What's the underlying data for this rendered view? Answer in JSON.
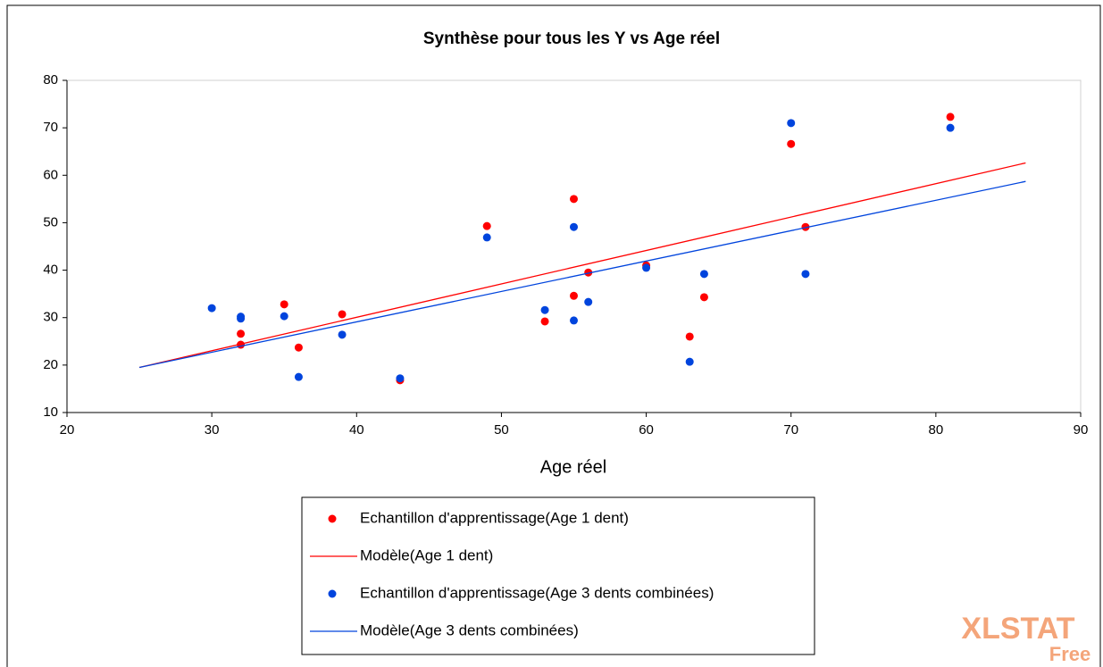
{
  "chart_data": {
    "type": "scatter",
    "title": "Synthèse pour tous les Y vs Age réel",
    "xlabel": "Age réel",
    "xlim": [
      20,
      90
    ],
    "xticks": [
      20,
      30,
      40,
      50,
      60,
      70,
      80,
      90
    ],
    "ylim": [
      10,
      80
    ],
    "yticks": [
      10,
      20,
      30,
      40,
      50,
      60,
      70,
      80
    ],
    "series": [
      {
        "name": "Echantillon d'apprentissage(Age 1 dent)",
        "kind": "points",
        "color": "#ff0000",
        "x": [
          32,
          32,
          35,
          36,
          39,
          43,
          49,
          53,
          55,
          55,
          56,
          60,
          63,
          64,
          70,
          71,
          81
        ],
        "values": [
          24.3,
          26.6,
          32.8,
          23.7,
          30.7,
          16.8,
          49.3,
          29.2,
          55.0,
          34.6,
          39.5,
          41,
          26,
          34.3,
          66.6,
          49.1,
          72.3
        ]
      },
      {
        "name": "Modèle(Age 1 dent)",
        "kind": "line",
        "color": "#ff0000",
        "x": [
          25,
          86.2
        ],
        "values": [
          19.5,
          62.6
        ]
      },
      {
        "name": "Echantillon d'apprentissage(Age 3 dents combinées)",
        "kind": "points",
        "color": "#0044dd",
        "x": [
          30,
          32,
          32,
          35,
          36,
          39,
          43,
          49,
          53,
          55,
          55,
          56,
          60,
          63,
          64,
          70,
          71,
          81
        ],
        "values": [
          32,
          30.2,
          29.8,
          30.3,
          17.5,
          26.4,
          17.2,
          46.9,
          31.6,
          49.1,
          29.4,
          33.3,
          40.5,
          20.7,
          39.2,
          71,
          39.2,
          70
        ]
      },
      {
        "name": "Modèle(Age 3 dents combinées)",
        "kind": "line",
        "color": "#0044dd",
        "x": [
          25,
          86.2
        ],
        "values": [
          19.5,
          58.7
        ]
      }
    ],
    "logo": "XLSTAT",
    "logo_sub": "Free"
  }
}
